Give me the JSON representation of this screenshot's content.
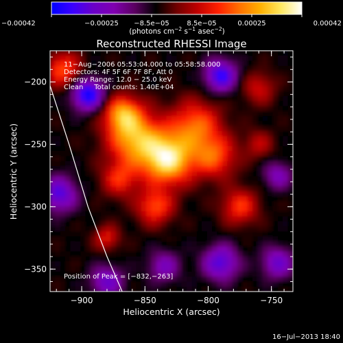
{
  "chart_data": {
    "type": "heatmap",
    "title": "Reconstructed RHESSI Image",
    "xlabel": "Heliocentric X (arcsec)",
    "ylabel": "Heliocentric Y (arcsec)",
    "xlim": [
      -925,
      -733
    ],
    "ylim": [
      -368,
      -175
    ],
    "x_ticks": [
      -900,
      -850,
      -800,
      -750
    ],
    "x_tick_labels": [
      "−900",
      "−850",
      "−800",
      "−750"
    ],
    "y_ticks": [
      -200,
      -250,
      -300,
      -350
    ],
    "y_tick_labels": [
      "−200",
      "−250",
      "−300",
      "−350"
    ],
    "colorbar": {
      "range": [
        -0.00042,
        0.00042
      ],
      "tick_labels": [
        "−0.00042",
        "−0.00025",
        "−8.5e−05",
        "8.5e−05",
        "0.00025",
        "0.00042"
      ],
      "unit_text": "(photons cm",
      "unit_parts": [
        "(photons cm",
        "−2",
        " s",
        "−1",
        " asec",
        "−2",
        ")"
      ],
      "colors": [
        "#0000ff",
        "#3a00ff",
        "#6a00c8",
        "#8000b0",
        "#5a0060",
        "#000000",
        "#700000",
        "#c00000",
        "#ff2000",
        "#ff7000",
        "#ffb000",
        "#ffe860",
        "#ffffff"
      ]
    },
    "annotations": [
      "11−Aug−2006 05:53:04.000 to 05:58:58.000",
      "Detectors: 4F 5F 6F 7F 8F, Att 0",
      "Energy Range: 12.0 − 25.0 keV",
      "Clean     Total counts: 1.40E+04"
    ],
    "peak_label": "Position of Peak = [−832,−263]",
    "peak": {
      "x": -832,
      "y": -263
    },
    "limb_curve": [
      [
        -925,
        -203
      ],
      [
        -910,
        -250
      ],
      [
        -895,
        -300
      ],
      [
        -880,
        -340
      ],
      [
        -868,
        -368
      ]
    ],
    "sources": [
      {
        "x": -832,
        "y": -262,
        "value": 1.0,
        "sigma": 14
      },
      {
        "x": -858,
        "y": -245,
        "value": 0.8,
        "sigma": 15
      },
      {
        "x": -868,
        "y": -225,
        "value": 0.65,
        "sigma": 10
      },
      {
        "x": -810,
        "y": -235,
        "value": 0.6,
        "sigma": 14
      },
      {
        "x": -795,
        "y": -260,
        "value": 0.55,
        "sigma": 12
      },
      {
        "x": -775,
        "y": -300,
        "value": 0.5,
        "sigma": 10
      },
      {
        "x": -842,
        "y": -300,
        "value": 0.55,
        "sigma": 10
      },
      {
        "x": -870,
        "y": -278,
        "value": 0.45,
        "sigma": 10
      },
      {
        "x": -915,
        "y": -190,
        "value": 0.55,
        "sigma": 10
      },
      {
        "x": -880,
        "y": -325,
        "value": 0.4,
        "sigma": 7
      },
      {
        "x": -760,
        "y": -205,
        "value": 0.35,
        "sigma": 9
      },
      {
        "x": -760,
        "y": -250,
        "value": 0.3,
        "sigma": 8
      },
      {
        "x": -895,
        "y": -210,
        "value": -0.8,
        "sigma": 9
      },
      {
        "x": -790,
        "y": -195,
        "value": -0.7,
        "sigma": 9
      },
      {
        "x": -918,
        "y": -290,
        "value": -0.6,
        "sigma": 10
      },
      {
        "x": -790,
        "y": -345,
        "value": -0.6,
        "sigma": 10
      },
      {
        "x": -880,
        "y": -360,
        "value": -0.5,
        "sigma": 9
      },
      {
        "x": -745,
        "y": -345,
        "value": -0.5,
        "sigma": 9
      },
      {
        "x": -835,
        "y": -348,
        "value": -0.4,
        "sigma": 9
      },
      {
        "x": -745,
        "y": -275,
        "value": -0.4,
        "sigma": 8
      }
    ],
    "grid": false,
    "legend": "colorbar-top"
  },
  "footer": {
    "timestamp": "16−Jul−2013 18:40"
  }
}
